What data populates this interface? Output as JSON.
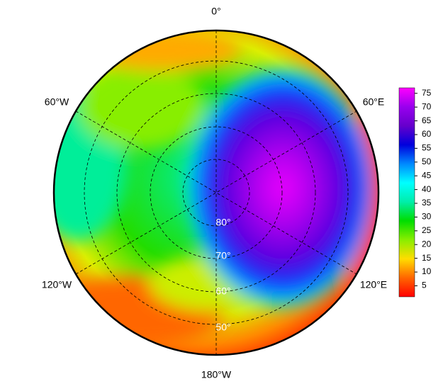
{
  "map": {
    "type": "polar",
    "lon_labels": [
      "0°",
      "60°W",
      "60°E",
      "120°W",
      "120°E",
      "180°W"
    ],
    "lat_labels": [
      "80°",
      "70°",
      "60°",
      "50°"
    ],
    "colorbar": {
      "range": [
        1,
        77
      ],
      "ticks": [
        5,
        10,
        15,
        20,
        25,
        30,
        35,
        40,
        45,
        50,
        55,
        60,
        65,
        70,
        75
      ],
      "colors": [
        "#ff0000",
        "#ff6600",
        "#ffdd00",
        "#88ee00",
        "#00dd00",
        "#00eeaa",
        "#00ffff",
        "#0088ff",
        "#0000dd",
        "#6600cc",
        "#9900ee",
        "#ff00ff"
      ]
    }
  }
}
